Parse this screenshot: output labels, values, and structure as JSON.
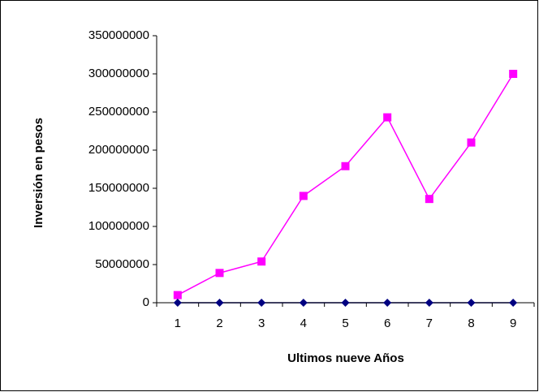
{
  "chart_data": {
    "type": "line",
    "x_label": "Ultimos nueve Años",
    "y_label": "Inversión  en pesos",
    "categories": [
      "1",
      "2",
      "3",
      "4",
      "5",
      "6",
      "7",
      "8",
      "9"
    ],
    "series": [
      {
        "color": "#ff00ff",
        "marker": "square",
        "values": [
          10000000,
          39000000,
          54000000,
          140000000,
          179000000,
          243000000,
          136000000,
          210000000,
          300000000
        ]
      },
      {
        "color": "#000080",
        "marker": "diamond",
        "values": [
          0,
          0,
          0,
          0,
          0,
          0,
          0,
          0,
          0
        ]
      }
    ],
    "ylim": [
      0,
      350000000
    ],
    "yticks": [
      0,
      50000000,
      100000000,
      150000000,
      200000000,
      250000000,
      300000000,
      350000000
    ],
    "grid": false
  }
}
